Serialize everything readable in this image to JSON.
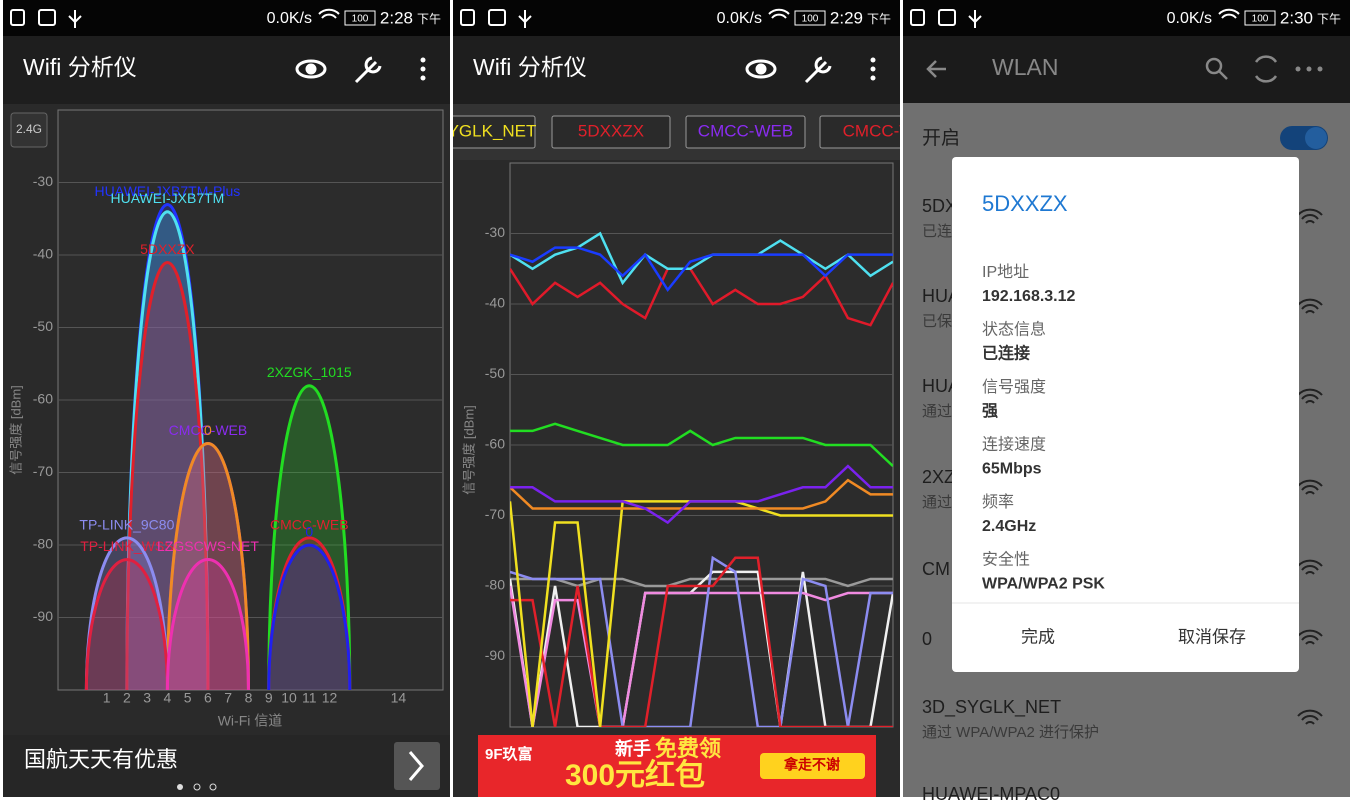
{
  "screens": [
    {
      "status": {
        "speed": "0.0K/s",
        "battery": "100",
        "time": "2:28",
        "period": "下午"
      },
      "app_title": "Wifi 分析仪",
      "chart": {
        "type": "channel",
        "band": "2.4G",
        "y_label": "信号强度 [dBm]",
        "x_label": "Wi-Fi 信道",
        "xlim": [
          2400,
          2495
        ],
        "xticks": [
          {
            "value": 2412,
            "label": "1"
          },
          {
            "value": 2417,
            "label": "2"
          },
          {
            "value": 2422,
            "label": "3"
          },
          {
            "value": 2427,
            "label": "4"
          },
          {
            "value": 2432,
            "label": "5"
          },
          {
            "value": 2437,
            "label": "6"
          },
          {
            "value": 2442,
            "label": "7"
          },
          {
            "value": 2447,
            "label": "8"
          },
          {
            "value": 2452,
            "label": "9"
          },
          {
            "value": 2457,
            "label": "10"
          },
          {
            "value": 2462,
            "label": "11"
          },
          {
            "value": 2467,
            "label": "12"
          },
          {
            "value": 2484,
            "label": "14"
          }
        ],
        "ylim": [
          -100,
          -20
        ],
        "yticks": [
          -30,
          -40,
          -50,
          -60,
          -70,
          -80,
          -90
        ],
        "grid": true,
        "networks": [
          {
            "name": "HUAWEI-JXB7TM-Plus",
            "color": "#2233ff",
            "frequency": 2427,
            "signal": -33
          },
          {
            "name": "HUAWEI-JXB7TM",
            "color": "#4fe0f0",
            "frequency": 2427,
            "signal": -34
          },
          {
            "name": "5DXXZX",
            "color": "#e0202a",
            "frequency": 2427,
            "signal": -41
          },
          {
            "name": "2XZGK_1015",
            "color": "#22dd22",
            "frequency": 2462,
            "signal": -58
          },
          {
            "name": "CMCC-WEB",
            "color": "#8a2cf0",
            "frequency": 2437,
            "signal": -66
          },
          {
            "name": "0",
            "color": "#f08a24",
            "frequency": 2437,
            "signal": -66
          },
          {
            "name": "TP-LINK_9C80",
            "color": "#8c8cf0",
            "frequency": 2417,
            "signal": -79
          },
          {
            "name": "TP-LINK_WSS",
            "color": "#e02040",
            "frequency": 2417,
            "signal": -82
          },
          {
            "name": "LZGSCWS-NET",
            "color": "#ee30b0",
            "frequency": 2437,
            "signal": -82
          },
          {
            "name": "CMCC-WEB",
            "color": "#e02030",
            "frequency": 2462,
            "signal": -79
          },
          {
            "name": "0",
            "color": "#2020ee",
            "frequency": 2462,
            "signal": -80
          }
        ]
      },
      "ad": {
        "text": "国航天天有优惠"
      }
    },
    {
      "status": {
        "speed": "0.0K/s",
        "battery": "100",
        "time": "2:29",
        "period": "下午"
      },
      "app_title": "Wifi 分析仪",
      "tabs": [
        {
          "name": "YGLK_NET",
          "color": "#f0e020"
        },
        {
          "name": "5DXXZX",
          "color": "#e0202a"
        },
        {
          "name": "CMCC-WEB",
          "color": "#8a2cf0"
        },
        {
          "name": "CMCC-W",
          "color": "#e0202a"
        }
      ],
      "chart": {
        "type": "time",
        "y_label": "信号强度 [dBm]",
        "ylim": [
          -100,
          -20
        ],
        "yticks": [
          -30,
          -40,
          -50,
          -60,
          -70,
          -80,
          -90
        ],
        "grid": true,
        "series": [
          {
            "color": "#9a9a9a",
            "values": [
              -79,
              -79,
              -79,
              -80,
              -79,
              -79,
              -80,
              -80,
              -79,
              -79,
              -79,
              -79,
              -79,
              -79,
              -79,
              -80,
              -79,
              -79
            ]
          },
          {
            "color": "#f0f0f0",
            "values": [
              -79,
              -100,
              -80,
              -100,
              -100,
              -100,
              -81,
              -81,
              -81,
              -78,
              -78,
              -78,
              -100,
              -78,
              -100,
              -100,
              -100,
              -81
            ]
          },
          {
            "color": "#f08ae0",
            "values": [
              -80,
              -100,
              -82,
              -82,
              -100,
              -100,
              -81,
              -81,
              -81,
              -81,
              -81,
              -81,
              -81,
              -81,
              -82,
              -81,
              -81,
              -81
            ]
          },
          {
            "color": "#8c8cf0",
            "values": [
              -78,
              -79,
              -79,
              -79,
              -79,
              -100,
              -100,
              -100,
              -100,
              -76,
              -78,
              -100,
              -100,
              -79,
              -80,
              -100,
              -81,
              -81
            ]
          },
          {
            "color": "#e0202a",
            "values": [
              -82,
              -82,
              -100,
              -80,
              -100,
              -100,
              -100,
              -80,
              -80,
              -80,
              -76,
              -76,
              -100,
              -100,
              -100,
              -100,
              -100,
              -100
            ]
          },
          {
            "color": "#f0e020",
            "values": [
              -68,
              -100,
              -71,
              -71,
              -100,
              -68,
              -68,
              -68,
              -68,
              -68,
              -68,
              -69,
              -70,
              -70,
              -70,
              -70,
              -70,
              -70
            ]
          },
          {
            "color": "#f08a24",
            "values": [
              -66,
              -69,
              -69,
              -69,
              -69,
              -69,
              -69,
              -69,
              -69,
              -69,
              -69,
              -69,
              -69,
              -69,
              -68,
              -65,
              -67,
              -67
            ]
          },
          {
            "color": "#7a22ee",
            "values": [
              -66,
              -66,
              -68,
              -68,
              -68,
              -68,
              -69,
              -71,
              -68,
              -68,
              -68,
              -68,
              -67,
              -66,
              -66,
              -63,
              -66,
              -66
            ]
          },
          {
            "color": "#22dd22",
            "values": [
              -58,
              -58,
              -57,
              -58,
              -59,
              -60,
              -60,
              -60,
              -58,
              -60,
              -59,
              -59,
              -59,
              -59,
              -60,
              -60,
              -60,
              -63
            ]
          },
          {
            "color": "#e01a2a",
            "values": [
              -35,
              -40,
              -37,
              -39,
              -37,
              -40,
              -42,
              -35,
              -35,
              -40,
              -38,
              -40,
              -40,
              -39,
              -36,
              -42,
              -43,
              -37
            ]
          },
          {
            "color": "#4fe0f0",
            "values": [
              -33,
              -35,
              -33,
              -32,
              -30,
              -37,
              -33,
              -35,
              -35,
              -33,
              -33,
              -33,
              -31,
              -33,
              -35,
              -33,
              -36,
              -34
            ]
          },
          {
            "color": "#1a3cff",
            "values": [
              -33,
              -34,
              -32,
              -32,
              -33,
              -36,
              -33,
              -38,
              -34,
              -33,
              -33,
              -33,
              -33,
              -33,
              -36,
              -33,
              -33,
              -33
            ]
          }
        ]
      },
      "ad": {
        "brand": "9F玖富",
        "headline_1": "新手",
        "headline_2": "免费领",
        "amount": "300元红包",
        "button": "拿走不谢"
      }
    },
    {
      "status": {
        "speed": "0.0K/s",
        "battery": "100",
        "time": "2:30",
        "period": "下午"
      },
      "title": "WLAN",
      "toggle_label": "开启",
      "networks": [
        {
          "name": "5DX",
          "detail": "已连"
        },
        {
          "name": "HUA",
          "detail": "已保"
        },
        {
          "name": "HUA",
          "detail": "通过"
        },
        {
          "name": "2XZ",
          "detail": "通过"
        },
        {
          "name": "CM"
        },
        {
          "name": "0"
        },
        {
          "name": "3D_SYGLK_NET",
          "detail": "通过 WPA/WPA2 进行保护"
        },
        {
          "name": "HUAWEI-MPAC0"
        }
      ],
      "dialog": {
        "title": "5DXXZX",
        "fields": [
          {
            "label": "IP地址",
            "value": "192.168.3.12"
          },
          {
            "label": "状态信息",
            "value": "已连接"
          },
          {
            "label": "信号强度",
            "value": "强"
          },
          {
            "label": "连接速度",
            "value": "65Mbps"
          },
          {
            "label": "频率",
            "value": "2.4GHz"
          },
          {
            "label": "安全性",
            "value": "WPA/WPA2 PSK"
          }
        ],
        "buttons": [
          "完成",
          "取消保存"
        ]
      }
    }
  ]
}
